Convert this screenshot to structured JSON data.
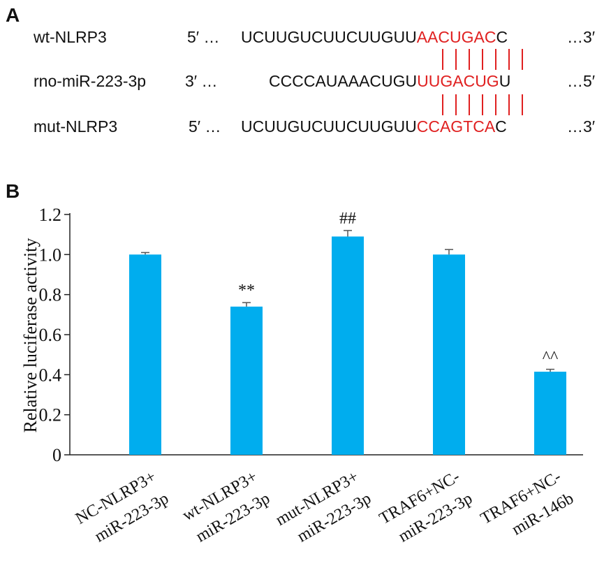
{
  "panel_a": {
    "label": "A",
    "rows": [
      {
        "name": "wt-NLRP3",
        "end5": "5′ …",
        "body": "UCUUGUCUUCUUGUU",
        "red": "AACUGAC",
        "tail": "C",
        "end3": "…3′"
      },
      {
        "name": "rno-miR-223-3p",
        "end5": "3′ …",
        "body": "CCCCAUAAACUGU",
        "red": "UUGACUG",
        "tail": "U",
        "end3": "…5′"
      },
      {
        "name": "mut-NLRP3",
        "end5": "5′ …",
        "body": "UCUUGUCUUCUUGUU",
        "red": "CCAGTCA",
        "tail": "C",
        "end3": "…3′"
      }
    ],
    "pair_color": "#e02020"
  },
  "panel_b": {
    "label": "B"
  },
  "chart_data": {
    "type": "bar",
    "ylabel": "Relative luciferase activity",
    "xlabel": "",
    "ylim": [
      0,
      1.2
    ],
    "yticks": [
      "0",
      "0.2",
      "0.4",
      "0.6",
      "0.8",
      "1.0",
      "1.2"
    ],
    "categories": [
      [
        "NC-NLRP3+",
        "miR-223-3p"
      ],
      [
        "wt-NLRP3+",
        "miR-223-3p"
      ],
      [
        "mut-NLRP3+",
        "miR-223-3p"
      ],
      [
        "TRAF6+NC-",
        "miR-223-3p"
      ],
      [
        "TRAF6+NC-",
        "miR-146b"
      ]
    ],
    "values": [
      1.0,
      0.74,
      1.09,
      1.0,
      0.415
    ],
    "errors": [
      0.01,
      0.02,
      0.03,
      0.025,
      0.012
    ],
    "annotations": [
      "",
      "**",
      "##",
      "",
      "^^"
    ],
    "bar_color": "#00adee",
    "grid": false
  }
}
